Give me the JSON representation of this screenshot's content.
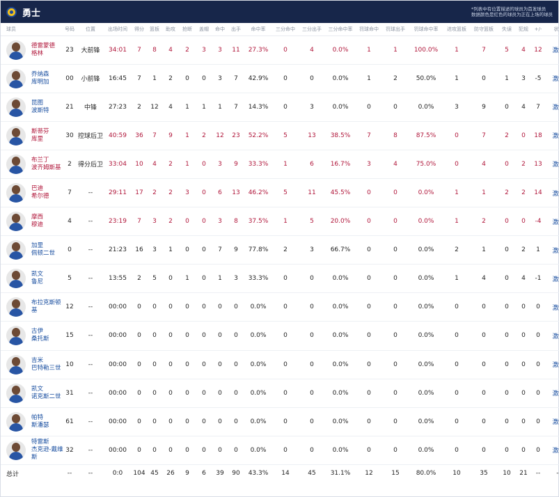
{
  "header": {
    "team_name": "勇士",
    "note_line1": "*列表中有位置描述的球员为首发球员",
    "note_line2": "数据颜色是红色的球员为正在上场的球员"
  },
  "columns": [
    "球员",
    "号码",
    "位置",
    "出场时间",
    "得分",
    "篮板",
    "助攻",
    "抢断",
    "盖帽",
    "命中",
    "出手",
    "命中率",
    "三分命中",
    "三分出手",
    "三分命中率",
    "罚球命中",
    "罚球出手",
    "罚球命中率",
    "进攻篮板",
    "防守篮板",
    "失误",
    "犯规",
    "+/-",
    "状态"
  ],
  "players": [
    {
      "name": "德雷蒙德·格林",
      "line1": "德雷蒙德",
      "line2": "格林",
      "number": "23",
      "position": "大前锋",
      "minutes": "34:01",
      "points": "7",
      "rebounds": "8",
      "assists": "4",
      "steals": "2",
      "blocks": "3",
      "fgm": "3",
      "fga": "11",
      "fg_pct": "27.3%",
      "tpm": "0",
      "tpa": "4",
      "tp_pct": "0.0%",
      "ftm": "1",
      "fta": "1",
      "ft_pct": "100.0%",
      "oreb": "1",
      "dreb": "7",
      "tov": "5",
      "fouls": "4",
      "plus_minus": "12",
      "status": "激活",
      "on_court": true
    },
    {
      "name": "乔纳森·库明加",
      "line1": "乔纳森",
      "line2": "库明加",
      "number": "00",
      "position": "小前锋",
      "minutes": "16:45",
      "points": "7",
      "rebounds": "1",
      "assists": "2",
      "steals": "0",
      "blocks": "0",
      "fgm": "3",
      "fga": "7",
      "fg_pct": "42.9%",
      "tpm": "0",
      "tpa": "0",
      "tp_pct": "0.0%",
      "ftm": "1",
      "fta": "2",
      "ft_pct": "50.0%",
      "oreb": "1",
      "dreb": "0",
      "tov": "1",
      "fouls": "3",
      "plus_minus": "-5",
      "status": "激活",
      "on_court": false
    },
    {
      "name": "昆图·波斯特",
      "line1": "昆图",
      "line2": "波斯特",
      "number": "21",
      "position": "中锋",
      "minutes": "27:23",
      "points": "2",
      "rebounds": "12",
      "assists": "4",
      "steals": "1",
      "blocks": "1",
      "fgm": "1",
      "fga": "7",
      "fg_pct": "14.3%",
      "tpm": "0",
      "tpa": "3",
      "tp_pct": "0.0%",
      "ftm": "0",
      "fta": "0",
      "ft_pct": "0.0%",
      "oreb": "3",
      "dreb": "9",
      "tov": "0",
      "fouls": "4",
      "plus_minus": "7",
      "status": "激活",
      "on_court": false
    },
    {
      "name": "斯蒂芬·库里",
      "line1": "斯蒂芬",
      "line2": "库里",
      "number": "30",
      "position": "控球后卫",
      "minutes": "40:59",
      "points": "36",
      "rebounds": "7",
      "assists": "9",
      "steals": "1",
      "blocks": "2",
      "fgm": "12",
      "fga": "23",
      "fg_pct": "52.2%",
      "tpm": "5",
      "tpa": "13",
      "tp_pct": "38.5%",
      "ftm": "7",
      "fta": "8",
      "ft_pct": "87.5%",
      "oreb": "0",
      "dreb": "7",
      "tov": "2",
      "fouls": "0",
      "plus_minus": "18",
      "status": "激活",
      "on_court": true
    },
    {
      "name": "布兰丁·波齐姆斯基",
      "line1": "布兰丁",
      "line2": "波齐姆斯基",
      "number": "2",
      "position": "得分后卫",
      "minutes": "33:04",
      "points": "10",
      "rebounds": "4",
      "assists": "2",
      "steals": "1",
      "blocks": "0",
      "fgm": "3",
      "fga": "9",
      "fg_pct": "33.3%",
      "tpm": "1",
      "tpa": "6",
      "tp_pct": "16.7%",
      "ftm": "3",
      "fta": "4",
      "ft_pct": "75.0%",
      "oreb": "0",
      "dreb": "4",
      "tov": "0",
      "fouls": "2",
      "plus_minus": "13",
      "status": "激活",
      "on_court": true
    },
    {
      "name": "巴迪·希尔德",
      "line1": "巴迪",
      "line2": "希尔德",
      "number": "7",
      "position": "--",
      "minutes": "29:11",
      "points": "17",
      "rebounds": "2",
      "assists": "2",
      "steals": "3",
      "blocks": "0",
      "fgm": "6",
      "fga": "13",
      "fg_pct": "46.2%",
      "tpm": "5",
      "tpa": "11",
      "tp_pct": "45.5%",
      "ftm": "0",
      "fta": "0",
      "ft_pct": "0.0%",
      "oreb": "1",
      "dreb": "1",
      "tov": "2",
      "fouls": "2",
      "plus_minus": "14",
      "status": "激活",
      "on_court": true
    },
    {
      "name": "摩西·穆迪",
      "line1": "摩西",
      "line2": "穆迪",
      "number": "4",
      "position": "--",
      "minutes": "23:19",
      "points": "7",
      "rebounds": "3",
      "assists": "2",
      "steals": "0",
      "blocks": "0",
      "fgm": "3",
      "fga": "8",
      "fg_pct": "37.5%",
      "tpm": "1",
      "tpa": "5",
      "tp_pct": "20.0%",
      "ftm": "0",
      "fta": "0",
      "ft_pct": "0.0%",
      "oreb": "1",
      "dreb": "2",
      "tov": "0",
      "fouls": "0",
      "plus_minus": "-4",
      "status": "激活",
      "on_court": true
    },
    {
      "name": "加里·佩顿二世",
      "line1": "加里",
      "line2": "佩顿二世",
      "number": "0",
      "position": "--",
      "minutes": "21:23",
      "points": "16",
      "rebounds": "3",
      "assists": "1",
      "steals": "0",
      "blocks": "0",
      "fgm": "7",
      "fga": "9",
      "fg_pct": "77.8%",
      "tpm": "2",
      "tpa": "3",
      "tp_pct": "66.7%",
      "ftm": "0",
      "fta": "0",
      "ft_pct": "0.0%",
      "oreb": "2",
      "dreb": "1",
      "tov": "0",
      "fouls": "2",
      "plus_minus": "1",
      "status": "激活",
      "on_court": false
    },
    {
      "name": "凯文·鲁尼",
      "line1": "凯文",
      "line2": "鲁尼",
      "number": "5",
      "position": "--",
      "minutes": "13:55",
      "points": "2",
      "rebounds": "5",
      "assists": "0",
      "steals": "1",
      "blocks": "0",
      "fgm": "1",
      "fga": "3",
      "fg_pct": "33.3%",
      "tpm": "0",
      "tpa": "0",
      "tp_pct": "0.0%",
      "ftm": "0",
      "fta": "0",
      "ft_pct": "0.0%",
      "oreb": "1",
      "dreb": "4",
      "tov": "0",
      "fouls": "4",
      "plus_minus": "-1",
      "status": "激活",
      "on_court": false
    },
    {
      "name": "布拉克斯顿·基",
      "line1": "布拉克斯顿",
      "line2": "基",
      "number": "12",
      "position": "--",
      "minutes": "00:00",
      "points": "0",
      "rebounds": "0",
      "assists": "0",
      "steals": "0",
      "blocks": "0",
      "fgm": "0",
      "fga": "0",
      "fg_pct": "0.0%",
      "tpm": "0",
      "tpa": "0",
      "tp_pct": "0.0%",
      "ftm": "0",
      "fta": "0",
      "ft_pct": "0.0%",
      "oreb": "0",
      "dreb": "0",
      "tov": "0",
      "fouls": "0",
      "plus_minus": "0",
      "status": "激活",
      "on_court": false
    },
    {
      "name": "古伊·桑托斯",
      "line1": "古伊",
      "line2": "桑托斯",
      "number": "15",
      "position": "--",
      "minutes": "00:00",
      "points": "0",
      "rebounds": "0",
      "assists": "0",
      "steals": "0",
      "blocks": "0",
      "fgm": "0",
      "fga": "0",
      "fg_pct": "0.0%",
      "tpm": "0",
      "tpa": "0",
      "tp_pct": "0.0%",
      "ftm": "0",
      "fta": "0",
      "ft_pct": "0.0%",
      "oreb": "0",
      "dreb": "0",
      "tov": "0",
      "fouls": "0",
      "plus_minus": "0",
      "status": "激活",
      "on_court": false
    },
    {
      "name": "吉米·巴特勒三世",
      "line1": "吉米",
      "line2": "巴特勒三世",
      "number": "10",
      "position": "--",
      "minutes": "00:00",
      "points": "0",
      "rebounds": "0",
      "assists": "0",
      "steals": "0",
      "blocks": "0",
      "fgm": "0",
      "fga": "0",
      "fg_pct": "0.0%",
      "tpm": "0",
      "tpa": "0",
      "tp_pct": "0.0%",
      "ftm": "0",
      "fta": "0",
      "ft_pct": "0.0%",
      "oreb": "0",
      "dreb": "0",
      "tov": "0",
      "fouls": "0",
      "plus_minus": "0",
      "status": "激活",
      "on_court": false
    },
    {
      "name": "凯文·诺克斯二世",
      "line1": "凯文",
      "line2": "诺克斯二世",
      "number": "31",
      "position": "--",
      "minutes": "00:00",
      "points": "0",
      "rebounds": "0",
      "assists": "0",
      "steals": "0",
      "blocks": "0",
      "fgm": "0",
      "fga": "0",
      "fg_pct": "0.0%",
      "tpm": "0",
      "tpa": "0",
      "tp_pct": "0.0%",
      "ftm": "0",
      "fta": "0",
      "ft_pct": "0.0%",
      "oreb": "0",
      "dreb": "0",
      "tov": "0",
      "fouls": "0",
      "plus_minus": "0",
      "status": "激活",
      "on_court": false
    },
    {
      "name": "帕特·斯潘瑟",
      "line1": "帕特",
      "line2": "斯潘瑟",
      "number": "61",
      "position": "--",
      "minutes": "00:00",
      "points": "0",
      "rebounds": "0",
      "assists": "0",
      "steals": "0",
      "blocks": "0",
      "fgm": "0",
      "fga": "0",
      "fg_pct": "0.0%",
      "tpm": "0",
      "tpa": "0",
      "tp_pct": "0.0%",
      "ftm": "0",
      "fta": "0",
      "ft_pct": "0.0%",
      "oreb": "0",
      "dreb": "0",
      "tov": "0",
      "fouls": "0",
      "plus_minus": "0",
      "status": "激活",
      "on_court": false
    },
    {
      "name": "特雷斯·杰克逊-戴维斯",
      "line1": "特雷斯",
      "line2": "杰克逊-戴维",
      "line3": "斯",
      "number": "32",
      "position": "--",
      "minutes": "00:00",
      "points": "0",
      "rebounds": "0",
      "assists": "0",
      "steals": "0",
      "blocks": "0",
      "fgm": "0",
      "fga": "0",
      "fg_pct": "0.0%",
      "tpm": "0",
      "tpa": "0",
      "tp_pct": "0.0%",
      "ftm": "0",
      "fta": "0",
      "ft_pct": "0.0%",
      "oreb": "0",
      "dreb": "0",
      "tov": "0",
      "fouls": "0",
      "plus_minus": "0",
      "status": "激活",
      "on_court": false
    }
  ],
  "totals": {
    "label": "总计",
    "number": "--",
    "position": "--",
    "minutes": "0:0",
    "points": "104",
    "rebounds": "45",
    "assists": "26",
    "steals": "9",
    "blocks": "6",
    "fgm": "39",
    "fga": "90",
    "fg_pct": "43.3%",
    "tpm": "14",
    "tpa": "45",
    "tp_pct": "31.1%",
    "ftm": "12",
    "fta": "15",
    "ft_pct": "80.0%",
    "oreb": "10",
    "dreb": "35",
    "tov": "10",
    "fouls": "21",
    "plus_minus": "--",
    "status": "--"
  }
}
